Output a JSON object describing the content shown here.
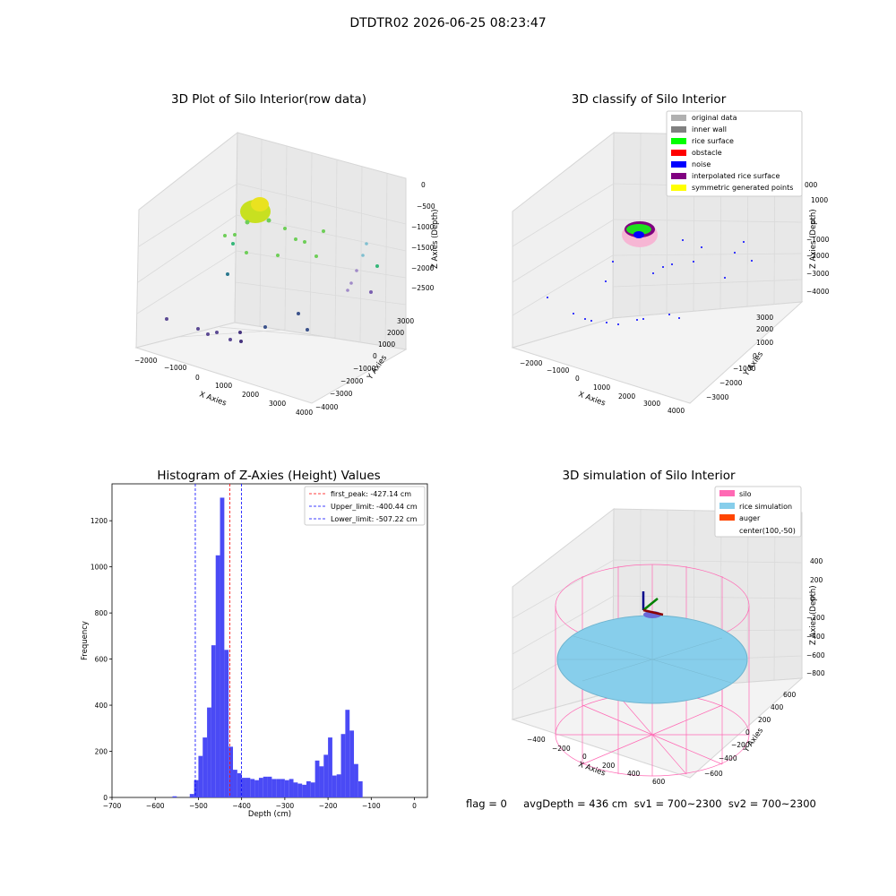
{
  "suptitle": "DTDTR02 2026-06-25 08:23:47",
  "panel_tl": {
    "title": "3D Plot of Silo Interior(row data)",
    "xlabel": "X Axies",
    "ylabel": "Y Axies",
    "zlabel": "Z Axies (Depth)",
    "xticks": [
      "−2000",
      "−1000",
      "0",
      "1000",
      "2000",
      "3000",
      "4000"
    ],
    "yticks": [
      "−4000",
      "−3000",
      "−2000",
      "−1000",
      "0",
      "1000",
      "2000",
      "3000"
    ],
    "zticks": [
      "0",
      "−500",
      "−1000",
      "−1500",
      "−2000",
      "−2500"
    ]
  },
  "panel_tr": {
    "title": "3D classify of Silo Interior",
    "xlabel": "X Axies",
    "ylabel": "Y Axies",
    "zlabel": "Z Axies (Depth)",
    "xticks": [
      "−2000",
      "−1000",
      "0",
      "1000",
      "2000",
      "3000",
      "4000"
    ],
    "yticks": [
      "−3000",
      "−2000",
      "−1000",
      "0",
      "1000",
      "2000",
      "3000"
    ],
    "zticks": [
      "1000",
      "0",
      "−1000",
      "−2000",
      "−3000",
      "−4000"
    ],
    "legend": [
      {
        "label": "original data",
        "color": "#b0b0b0"
      },
      {
        "label": "inner wall",
        "color": "#808080"
      },
      {
        "label": "rice surface",
        "color": "#00ff00"
      },
      {
        "label": "obstacle",
        "color": "#ff0000"
      },
      {
        "label": "noise",
        "color": "#0000ff"
      },
      {
        "label": "interpolated rice surface",
        "color": "#800080"
      },
      {
        "label": "symmetric generated points",
        "color": "#ffff00"
      }
    ],
    "zextra": "000"
  },
  "panel_bl": {
    "title": "Histogram of Z-Axies (Height) Values",
    "xlabel": "Depth (cm)",
    "ylabel": "Frequency",
    "xticks": [
      "−700",
      "−600",
      "−500",
      "−400",
      "−300",
      "−200",
      "−100",
      "0"
    ],
    "yticks": [
      "0",
      "200",
      "400",
      "600",
      "800",
      "1000",
      "1200"
    ],
    "legend": [
      {
        "label": "first_peak: -427.14 cm",
        "color": "#ff0000"
      },
      {
        "label": "Upper_limit: -400.44 cm",
        "color": "#0000ff"
      },
      {
        "label": "Lower_limit: -507.22 cm",
        "color": "#0000ff"
      }
    ]
  },
  "panel_br": {
    "title": "3D simulation of Silo Interior",
    "xlabel": "X Axies",
    "ylabel": "Y Axies",
    "zlabel": "Z Axies (Depth)",
    "xticks": [
      "−400",
      "−200",
      "0",
      "200",
      "400",
      "600"
    ],
    "yticks": [
      "−600",
      "−400",
      "−200",
      "0",
      "200",
      "400",
      "600"
    ],
    "zticks": [
      "400",
      "200",
      "0",
      "−200",
      "−400",
      "−600",
      "−800"
    ],
    "legend": [
      {
        "label": "silo",
        "color": "#ff69b4"
      },
      {
        "label": "rice simulation",
        "color": "#87ceeb"
      },
      {
        "label": "auger",
        "color": "#ff4500"
      },
      {
        "label": "center(100,-50)",
        "color": ""
      }
    ]
  },
  "footer": "flag = 0     avgDepth = 436 cm  sv1 = 700~2300  sv2 = 700~2300",
  "chart_data": [
    {
      "type": "scatter",
      "title": "3D Plot of Silo Interior(row data)",
      "xlabel": "X Axies",
      "ylabel": "Y Axies",
      "zlabel": "Z Axies (Depth)",
      "xlim": [
        -2200,
        4000
      ],
      "ylim": [
        -4000,
        3200
      ],
      "zlim": [
        -2800,
        100
      ],
      "grid": true
    },
    {
      "type": "scatter",
      "title": "3D classify of Silo Interior",
      "xlabel": "X Axies",
      "ylabel": "Y Axies",
      "zlabel": "Z Axies (Depth)",
      "xlim": [
        -2200,
        4000
      ],
      "ylim": [
        -3300,
        3200
      ],
      "zlim": [
        -4500,
        1200
      ],
      "grid": true,
      "legend": "top-right"
    },
    {
      "type": "bar",
      "title": "Histogram of Z-Axies (Height) Values",
      "xlabel": "Depth (cm)",
      "ylabel": "Frequency",
      "xlim": [
        -700,
        30
      ],
      "ylim": [
        0,
        1360
      ],
      "bin_width": 10,
      "bin_left_edges": [
        -560,
        -520,
        -510,
        -500,
        -490,
        -480,
        -470,
        -460,
        -450,
        -440,
        -430,
        -420,
        -410,
        -400,
        -390,
        -380,
        -370,
        -360,
        -350,
        -340,
        -330,
        -320,
        -310,
        -300,
        -290,
        -280,
        -270,
        -260,
        -250,
        -240,
        -230,
        -220,
        -210,
        -200,
        -190,
        -180,
        -170,
        -160,
        -150,
        -140,
        -130,
        -120,
        -110,
        -100,
        -90,
        -80,
        -70,
        -60,
        -50,
        -40,
        -30,
        -20,
        -10
      ],
      "values": [
        5,
        15,
        75,
        180,
        260,
        390,
        660,
        1050,
        1300,
        640,
        220,
        120,
        105,
        85,
        85,
        80,
        75,
        85,
        90,
        90,
        80,
        80,
        80,
        75,
        80,
        65,
        60,
        55,
        70,
        65,
        160,
        135,
        185,
        260,
        95,
        100,
        275,
        380,
        290,
        145,
        70,
        0,
        0,
        0,
        0,
        0,
        0,
        0,
        0,
        0,
        0,
        0,
        0
      ],
      "vlines": [
        {
          "x": -427.14,
          "label": "first_peak: -427.14 cm",
          "color": "#ff0000"
        },
        {
          "x": -400.44,
          "label": "Upper_limit: -400.44 cm",
          "color": "#0000ff"
        },
        {
          "x": -507.22,
          "label": "Lower_limit: -507.22 cm",
          "color": "#0000ff"
        }
      ],
      "legend": "top-right"
    },
    {
      "type": "scatter",
      "title": "3D simulation of Silo Interior",
      "xlabel": "X Axies",
      "ylabel": "Y Axies",
      "zlabel": "Z Axies (Depth)",
      "xlim": [
        -500,
        700
      ],
      "ylim": [
        -700,
        700
      ],
      "zlim": [
        -900,
        500
      ],
      "grid": true,
      "legend": "top-right"
    }
  ]
}
